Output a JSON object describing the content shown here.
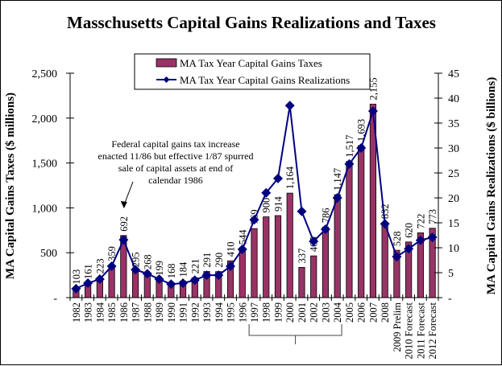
{
  "chart_data": {
    "type": "bar+line",
    "title": "Masschusetts Capital Gains Realizations and Taxes",
    "categories": [
      "1982",
      "1983",
      "1984",
      "1985",
      "1986",
      "1987",
      "1988",
      "1989",
      "1990",
      "1991",
      "1992",
      "1993",
      "1994",
      "1995",
      "1996",
      "1997",
      "1998",
      "1999",
      "2000",
      "2001",
      "2002",
      "2003",
      "2004",
      "2005",
      "2006",
      "2007",
      "2008",
      "2009 Prelim",
      "2010 Forecast",
      "2011 Forecast",
      "2012 Forecast"
    ],
    "series": [
      {
        "name": "MA  Tax Year Capital Gains Taxes",
        "type": "bar",
        "axis": "left",
        "color": "#993366",
        "values": [
          103,
          161,
          223,
          359,
          692,
          295,
          268,
          199,
          168,
          184,
          221,
          291,
          290,
          410,
          544,
          769,
          900,
          914,
          1164,
          337,
          465,
          786,
          1147,
          1517,
          1693,
          2155,
          832,
          528,
          620,
          722,
          773
        ],
        "labels": [
          "103",
          "161",
          "223",
          "359",
          "692",
          "295",
          "268",
          "199",
          "168",
          "184",
          "221",
          "291",
          "290",
          "410",
          "544",
          "769",
          "900",
          "914",
          "1,164",
          "337",
          "465",
          "786",
          "1,147",
          "1,517",
          "1,693",
          "2,155",
          "832",
          "528",
          "620",
          "722",
          "773"
        ]
      },
      {
        "name": "MA  Tax Year Capital Gains Realizations",
        "type": "line",
        "axis": "right",
        "color": "#000080",
        "marker": "diamond",
        "values": [
          1.8,
          2.9,
          3.7,
          6.3,
          11.6,
          5.6,
          4.8,
          3.7,
          2.7,
          2.9,
          3.5,
          4.5,
          4.5,
          6.3,
          9.7,
          15.6,
          21.0,
          23.9,
          38.5,
          17.3,
          11.3,
          13.7,
          20.0,
          26.8,
          30.0,
          37.4,
          14.8,
          8.2,
          9.8,
          11.5,
          12.1
        ]
      }
    ],
    "left_axis": {
      "label": "MA Capital Gains Taxes ($ millions)",
      "ylim": [
        0,
        2500
      ],
      "ticks": [
        0,
        500,
        1000,
        1500,
        2000,
        2500
      ],
      "tick_labels": [
        "-",
        "500",
        "1,000",
        "1,500",
        "2,000",
        "2,500"
      ]
    },
    "right_axis": {
      "label": "MA Capital Gains Realizations ($ billions)",
      "ylim": [
        0,
        45
      ],
      "ticks": [
        0,
        5,
        10,
        15,
        20,
        25,
        30,
        35,
        40,
        45
      ],
      "tick_labels": [
        "-",
        "5",
        "10",
        "15",
        "20",
        "25",
        "30",
        "35",
        "40",
        "45"
      ]
    },
    "legend": {
      "placement": "top-center",
      "entries": [
        "MA  Tax Year Capital Gains Taxes",
        "MA  Tax Year Capital Gains Realizations"
      ]
    },
    "annotations": [
      {
        "text_lines": [
          "Federal capital gains tax increase",
          "enacted 11/86 but effective 1/87 spurred",
          "sale of capital assets at end of",
          "calendar 1986"
        ],
        "points_to": "1986"
      },
      {
        "type": "bracket",
        "from": "1997",
        "to": "2004"
      }
    ],
    "grid": false
  }
}
